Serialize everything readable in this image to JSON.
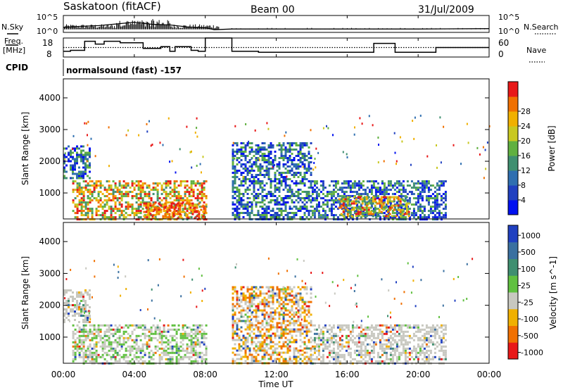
{
  "header": {
    "station": "Saskatoon (fitACF)",
    "beam": "Beam 00",
    "date": "31/Jul/2009"
  },
  "side_labels": {
    "nsky": "N.Sky",
    "nsearch": "N.Search",
    "freq_line1": "Freq.",
    "freq_line2": "[MHz]",
    "nave": "Nave",
    "cpid": "CPID"
  },
  "strip_axes": {
    "noise_left_ticks": [
      "10^5",
      "10^0"
    ],
    "noise_right_ticks": [
      "10^5",
      "10^0"
    ],
    "freq_left_ticks": [
      "18",
      "8"
    ],
    "nave_right_ticks": [
      "60",
      "0"
    ]
  },
  "cpid_text": "normalsound (fast) -157",
  "x_axis": {
    "label": "Time UT",
    "ticks": [
      "00:00",
      "04:00",
      "08:00",
      "12:00",
      "16:00",
      "20:00",
      "00:00"
    ]
  },
  "chart_data": [
    {
      "type": "line",
      "name": "noise",
      "x_hours_range": [
        0,
        24
      ],
      "series": [
        {
          "name": "N.Sky",
          "note": "noisy spikes 00:00–09:00, flat afterwards",
          "x": [
            0,
            1,
            2,
            3,
            4,
            5,
            6,
            7,
            8,
            8.5,
            9.5,
            12,
            16,
            20,
            24
          ],
          "y_log10": [
            1.5,
            1.8,
            2.0,
            2.5,
            3.0,
            2.4,
            2.2,
            1.6,
            1.4,
            0.8,
            1.0,
            1.0,
            1.0,
            1.0,
            1.1
          ]
        }
      ]
    },
    {
      "type": "line",
      "name": "frequency",
      "ylim": [
        8,
        18
      ],
      "series": [
        {
          "name": "Freq.",
          "x": [
            0,
            0.4,
            0.4,
            1.2,
            1.2,
            1.8,
            1.8,
            2.3,
            2.3,
            3.2,
            3.2,
            4.5,
            4.5,
            5.5,
            5.5,
            6.0,
            6.0,
            6.3,
            6.3,
            7.2,
            7.2,
            7.6,
            7.6,
            8.0,
            8.0,
            9.5,
            9.5,
            11.0,
            11.0,
            17.5,
            17.5,
            18.7,
            18.7,
            21.0,
            21.0,
            24
          ],
          "y": [
            11,
            11,
            11.5,
            11.5,
            16.3,
            16.3,
            14.8,
            14.8,
            16.3,
            16.3,
            15.5,
            15.5,
            12.5,
            12.5,
            13.5,
            13.5,
            11,
            11,
            13.5,
            13.5,
            11.5,
            11.5,
            11,
            11,
            18,
            18,
            11,
            11,
            10.5,
            10.5,
            15.2,
            15.2,
            10.5,
            10.5,
            13,
            13
          ]
        },
        {
          "name": "Nave",
          "x": [
            0,
            24
          ],
          "y": [
            30,
            30
          ],
          "ylim": [
            0,
            60
          ]
        }
      ]
    },
    {
      "type": "heatmap",
      "name": "power",
      "xlabel": "Time UT",
      "ylabel": "Slant Range [km]",
      "xlim_hours": [
        0,
        24
      ],
      "ylim_km": [
        180,
        4600
      ],
      "yticks": [
        1000,
        2000,
        3000,
        4000
      ],
      "colorbar": {
        "label": "Power [dB]",
        "ticks": [
          4,
          8,
          12,
          16,
          20,
          24,
          28
        ],
        "colors": [
          "#0010f0",
          "#2040c0",
          "#2f6fb0",
          "#3f8f70",
          "#60b040",
          "#c8c820",
          "#f0b000",
          "#f07000",
          "#e81818"
        ]
      },
      "data_gap_hours": [
        8.0,
        9.5
      ],
      "regions": [
        {
          "t": [
            0.0,
            1.5
          ],
          "r": [
            1500,
            2500
          ],
          "level": "low-mid"
        },
        {
          "t": [
            0.5,
            8.0
          ],
          "r": [
            200,
            1400
          ],
          "level": "mid-high"
        },
        {
          "t": [
            4.5,
            8.0
          ],
          "r": [
            200,
            700
          ],
          "level": "high"
        },
        {
          "t": [
            9.5,
            14.0
          ],
          "r": [
            200,
            2600
          ],
          "level": "low-mid"
        },
        {
          "t": [
            14.0,
            21.5
          ],
          "r": [
            200,
            1400
          ],
          "level": "low-mid"
        },
        {
          "t": [
            15.5,
            19.5
          ],
          "r": [
            300,
            900
          ],
          "level": "mid-high"
        }
      ]
    },
    {
      "type": "heatmap",
      "name": "velocity",
      "xlabel": "Time UT",
      "ylabel": "Slant Range [km]",
      "xlim_hours": [
        0,
        24
      ],
      "ylim_km": [
        180,
        4600
      ],
      "yticks": [
        1000,
        2000,
        3000,
        4000
      ],
      "colorbar": {
        "label": "Velocity [m s^-1]",
        "ticks": [
          1000,
          500,
          100,
          25,
          -25,
          -100,
          -500,
          -1000
        ],
        "colors": [
          "#2040c0",
          "#3a70a0",
          "#3f8f70",
          "#60c040",
          "#c8c8c0",
          "#f0b000",
          "#f07000",
          "#e81818"
        ]
      },
      "data_gap_hours": [
        8.0,
        9.5
      ],
      "regions": [
        {
          "t": [
            0.0,
            1.5
          ],
          "r": [
            1500,
            2500
          ],
          "level": "near-zero"
        },
        {
          "t": [
            0.5,
            8.0
          ],
          "r": [
            200,
            1400
          ],
          "level": "near-zero/positive"
        },
        {
          "t": [
            9.5,
            14.0
          ],
          "r": [
            200,
            2600
          ],
          "level": "mixed negative"
        },
        {
          "t": [
            14.0,
            21.5
          ],
          "r": [
            200,
            1400
          ],
          "level": "near-zero"
        }
      ]
    }
  ]
}
